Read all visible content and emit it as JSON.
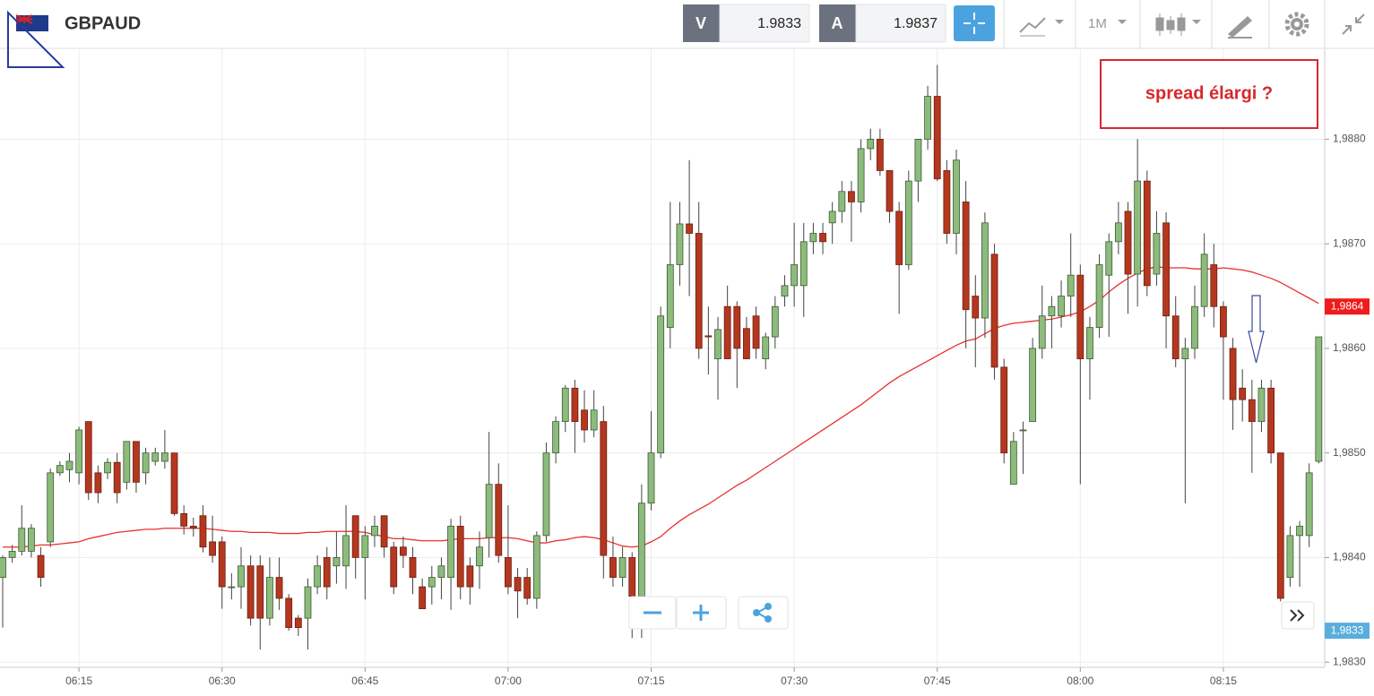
{
  "header": {
    "symbol": "GBPAUD",
    "bid_label": "V",
    "bid": "1.9833",
    "ask_label": "A",
    "ask": "1.9837",
    "timeframe": "1M"
  },
  "chart_data": {
    "type": "candlestick",
    "categories": [
      null,
      null,
      null,
      null,
      null,
      null,
      null,
      null,
      "06:15",
      null,
      null,
      null,
      null,
      null,
      null,
      null,
      null,
      null,
      null,
      null,
      null,
      null,
      null,
      "06:30",
      null,
      null,
      null,
      null,
      null,
      null,
      null,
      null,
      null,
      null,
      null,
      null,
      null,
      null,
      "06:45",
      null,
      null,
      null,
      null,
      null,
      null,
      null,
      null,
      null,
      null,
      null,
      null,
      null,
      null,
      "07:00",
      null,
      null,
      null,
      null,
      null,
      null,
      null,
      null,
      null,
      null,
      null,
      null,
      null,
      null,
      "07:15",
      null,
      null,
      null,
      null,
      null,
      null,
      null,
      null,
      null,
      null,
      null,
      null,
      null,
      null,
      "07:30",
      null,
      null,
      null,
      null,
      null,
      null,
      null,
      null,
      null,
      null,
      null,
      null,
      null,
      null,
      "07:45",
      null,
      null,
      null,
      null,
      null,
      null,
      null,
      null,
      null,
      null,
      null,
      null,
      null,
      null,
      "08:00",
      null,
      null,
      null,
      null,
      null,
      null,
      null,
      null,
      null,
      null,
      null,
      null,
      null,
      null,
      "08:15",
      null,
      null,
      null,
      null,
      null,
      null,
      null,
      null,
      null,
      null
    ],
    "open": [
      1.98381,
      1.984,
      1.98406,
      1.98406,
      1.98402,
      1.98415,
      1.98481,
      1.98484,
      1.98481,
      1.9853,
      1.98481,
      1.98481,
      1.98491,
      1.98472,
      1.98511,
      1.98481,
      1.98492,
      1.98492,
      1.985,
      1.98442,
      1.9843,
      1.9844,
      1.98415,
      1.98415,
      1.98372,
      1.98372,
      1.98392,
      1.98392,
      1.98342,
      1.98381,
      1.98361,
      1.98342,
      1.98342,
      1.98372,
      1.984,
      1.98392,
      1.98392,
      1.9844,
      1.984,
      1.98421,
      1.9844,
      1.9841,
      1.9841,
      1.984,
      1.98372,
      1.98372,
      1.98381,
      1.98381,
      1.9843,
      1.98392,
      1.98392,
      1.98419,
      1.9847,
      1.984,
      1.98381,
      1.98381,
      1.98361,
      1.98421,
      1.985,
      1.9853,
      1.98562,
      1.98541,
      1.98522,
      1.9853,
      1.984,
      1.98381,
      1.984,
      1.98363,
      1.98452,
      1.985,
      1.9862,
      1.9868,
      1.98719,
      1.9871,
      1.98612,
      1.9859,
      1.9864,
      1.9864,
      1.98619,
      1.98631,
      1.9859,
      1.98611,
      1.9865,
      1.9866,
      1.9866,
      1.98702,
      1.9871,
      1.9872,
      1.98731,
      1.9875,
      1.9874,
      1.98791,
      1.988,
      1.9877,
      1.98731,
      1.9868,
      1.9876,
      1.988,
      1.98841,
      1.9877,
      1.9871,
      1.9874,
      1.9865,
      1.98629,
      1.9869,
      1.98582,
      1.9847,
      1.98522,
      1.9853,
      1.986,
      1.98631,
      1.98631,
      1.9865,
      1.9867,
      1.9859,
      1.9862,
      1.9867,
      1.98702,
      1.98731,
      1.98671,
      1.9876,
      1.98671,
      1.9872,
      1.98631,
      1.9859,
      1.986,
      1.9864,
      1.9868,
      1.9864,
      1.986,
      1.98562,
      1.98551,
      1.9853,
      1.98562,
      1.985,
      1.98381,
      1.98421,
      1.98421,
      1.98492
    ],
    "high": [
      1.98402,
      1.98412,
      1.9845,
      1.98432,
      1.9841,
      1.98485,
      1.98492,
      1.985,
      1.98525,
      1.9853,
      1.98488,
      1.98495,
      1.985,
      1.98511,
      1.98511,
      1.98505,
      1.98505,
      1.98522,
      1.985,
      1.9845,
      1.98438,
      1.9845,
      1.9844,
      1.9842,
      1.98385,
      1.9841,
      1.98402,
      1.98402,
      1.984,
      1.984,
      1.98365,
      1.98345,
      1.9838,
      1.98402,
      1.9841,
      1.98425,
      1.9845,
      1.9844,
      1.9843,
      1.9844,
      1.9844,
      1.98415,
      1.9842,
      1.9841,
      1.9838,
      1.98392,
      1.984,
      1.98437,
      1.9844,
      1.984,
      1.98425,
      1.9852,
      1.9849,
      1.9845,
      1.9839,
      1.9839,
      1.98425,
      1.9851,
      1.98535,
      1.98565,
      1.9857,
      1.9856,
      1.9856,
      1.98545,
      1.9842,
      1.9841,
      1.98405,
      1.9847,
      1.9854,
      1.9864,
      1.9874,
      1.9874,
      1.9878,
      1.9874,
      1.9864,
      1.9863,
      1.9866,
      1.98645,
      1.9863,
      1.9864,
      1.98615,
      1.9865,
      1.9867,
      1.9872,
      1.9872,
      1.9872,
      1.9872,
      1.9874,
      1.9876,
      1.9876,
      1.988,
      1.9881,
      1.9881,
      1.9877,
      1.9874,
      1.9877,
      1.988,
      1.98851,
      1.98871,
      1.9878,
      1.9879,
      1.9876,
      1.9867,
      1.9873,
      1.987,
      1.9859,
      1.9852,
      1.9853,
      1.9861,
      1.9866,
      1.9865,
      1.98665,
      1.9871,
      1.9868,
      1.9863,
      1.9869,
      1.9871,
      1.9874,
      1.9874,
      1.988,
      1.9877,
      1.98731,
      1.9873,
      1.9865,
      1.9861,
      1.9866,
      1.9871,
      1.987,
      1.98645,
      1.9861,
      1.9858,
      1.9857,
      1.9857,
      1.9857,
      1.985,
      1.9843,
      1.98435,
      1.9849,
      1.98611
    ],
    "low": [
      1.98333,
      1.98395,
      1.98402,
      1.984,
      1.98372,
      1.9841,
      1.98478,
      1.98472,
      1.9847,
      1.98455,
      1.98452,
      1.98475,
      1.98452,
      1.98465,
      1.98462,
      1.9847,
      1.98488,
      1.98485,
      1.9844,
      1.98422,
      1.9842,
      1.98405,
      1.98395,
      1.98351,
      1.9836,
      1.98351,
      1.98335,
      1.98312,
      1.98335,
      1.9835,
      1.9833,
      1.98325,
      1.98312,
      1.98365,
      1.9836,
      1.98375,
      1.9837,
      1.9838,
      1.9836,
      1.9841,
      1.984,
      1.98365,
      1.9839,
      1.98365,
      1.98351,
      1.98355,
      1.9836,
      1.9835,
      1.9836,
      1.98355,
      1.9837,
      1.984,
      1.98395,
      1.98365,
      1.98342,
      1.98355,
      1.98351,
      1.98415,
      1.9849,
      1.9852,
      1.985,
      1.9851,
      1.98515,
      1.9838,
      1.98372,
      1.98372,
      1.98323,
      1.98323,
      1.98445,
      1.98495,
      1.986,
      1.9866,
      1.9865,
      1.9859,
      1.98575,
      1.98551,
      1.9859,
      1.98562,
      1.9859,
      1.9859,
      1.9858,
      1.986,
      1.9864,
      1.9864,
      1.9863,
      1.9869,
      1.9869,
      1.987,
      1.9872,
      1.98702,
      1.9873,
      1.9878,
      1.98765,
      1.9872,
      1.98633,
      1.98675,
      1.9874,
      1.9879,
      1.9876,
      1.987,
      1.9869,
      1.986,
      1.98582,
      1.9861,
      1.9857,
      1.9849,
      1.9847,
      1.9848,
      1.9853,
      1.9859,
      1.986,
      1.9862,
      1.9863,
      1.9847,
      1.98551,
      1.9861,
      1.98611,
      1.9869,
      1.98633,
      1.9864,
      1.9865,
      1.9866,
      1.986,
      1.98582,
      1.98452,
      1.9859,
      1.9863,
      1.9862,
      1.98551,
      1.98522,
      1.9853,
      1.98481,
      1.9852,
      1.9849,
      1.98358,
      1.98372,
      1.98372,
      1.9841,
      1.9849
    ],
    "close": [
      1.984,
      1.98406,
      1.98428,
      1.98428,
      1.98381,
      1.98481,
      1.98488,
      1.98492,
      1.98522,
      1.98462,
      1.98462,
      1.98491,
      1.98462,
      1.98511,
      1.98472,
      1.985,
      1.985,
      1.985,
      1.98442,
      1.9843,
      1.98428,
      1.9841,
      1.98402,
      1.98372,
      1.98372,
      1.98392,
      1.98342,
      1.98342,
      1.98381,
      1.98361,
      1.98333,
      1.98333,
      1.98372,
      1.98392,
      1.98372,
      1.984,
      1.98421,
      1.984,
      1.98421,
      1.9843,
      1.9841,
      1.98372,
      1.98402,
      1.98381,
      1.98351,
      1.98381,
      1.98392,
      1.9843,
      1.98372,
      1.98372,
      1.9841,
      1.9847,
      1.98402,
      1.98372,
      1.98368,
      1.98361,
      1.98421,
      1.985,
      1.9853,
      1.98562,
      1.9853,
      1.98522,
      1.98541,
      1.98402,
      1.98381,
      1.984,
      1.98363,
      1.98452,
      1.985,
      1.98631,
      1.9868,
      1.98719,
      1.9871,
      1.986,
      1.98611,
      1.98618,
      1.9859,
      1.986,
      1.9859,
      1.986,
      1.98611,
      1.9864,
      1.9866,
      1.9868,
      1.98702,
      1.9871,
      1.98702,
      1.98731,
      1.9875,
      1.9874,
      1.98791,
      1.988,
      1.9877,
      1.98731,
      1.9868,
      1.9876,
      1.988,
      1.98841,
      1.98762,
      1.9871,
      1.9878,
      1.98637,
      1.98629,
      1.9872,
      1.98582,
      1.985,
      1.98511,
      1.98522,
      1.986,
      1.98631,
      1.9864,
      1.9865,
      1.9867,
      1.9859,
      1.9862,
      1.9868,
      1.98702,
      1.9872,
      1.98671,
      1.9876,
      1.9866,
      1.9871,
      1.98631,
      1.9859,
      1.986,
      1.9864,
      1.9869,
      1.9864,
      1.98611,
      1.98551,
      1.98551,
      1.9853,
      1.98562,
      1.985,
      1.98361,
      1.98421,
      1.9843,
      1.98481,
      1.98611
    ],
    "up_color": "#8dbb7c",
    "down_color": "#b4371f",
    "moving_average": {
      "color": "#e8312f",
      "values": [
        1.9841,
        1.9841,
        1.9841,
        1.98411,
        1.98412,
        1.98412,
        1.98413,
        1.98414,
        1.98415,
        1.98418,
        1.9842,
        1.98422,
        1.98424,
        1.98425,
        1.98426,
        1.98427,
        1.98427,
        1.98428,
        1.98428,
        1.98428,
        1.98428,
        1.98428,
        1.98427,
        1.98426,
        1.98425,
        1.98425,
        1.98424,
        1.98424,
        1.98424,
        1.98423,
        1.98423,
        1.98423,
        1.98424,
        1.98424,
        1.98425,
        1.98425,
        1.98425,
        1.98425,
        1.98424,
        1.98422,
        1.9842,
        1.98418,
        1.98418,
        1.98417,
        1.98416,
        1.98416,
        1.98416,
        1.98417,
        1.98418,
        1.98418,
        1.98418,
        1.98419,
        1.98419,
        1.98419,
        1.98418,
        1.98416,
        1.98414,
        1.98414,
        1.98416,
        1.98417,
        1.98419,
        1.9842,
        1.98419,
        1.98417,
        1.98414,
        1.98411,
        1.9841,
        1.98411,
        1.98415,
        1.9842,
        1.98428,
        1.98435,
        1.98441,
        1.98446,
        1.98451,
        1.98457,
        1.98463,
        1.98469,
        1.98474,
        1.9848,
        1.98486,
        1.98492,
        1.98498,
        1.98504,
        1.9851,
        1.98516,
        1.98522,
        1.98528,
        1.98534,
        1.9854,
        1.98546,
        1.98553,
        1.9856,
        1.98567,
        1.98573,
        1.98578,
        1.98583,
        1.98588,
        1.98593,
        1.98598,
        1.98603,
        1.98607,
        1.98609,
        1.98614,
        1.98619,
        1.98622,
        1.98624,
        1.98625,
        1.98626,
        1.98627,
        1.98628,
        1.9863,
        1.98632,
        1.98635,
        1.9864,
        1.98646,
        1.98654,
        1.98661,
        1.98667,
        1.98672,
        1.98676,
        1.98678,
        1.98677,
        1.98677,
        1.98677,
        1.98676,
        1.98676,
        1.98676,
        1.98677,
        1.98676,
        1.98675,
        1.98673,
        1.9867,
        1.98667,
        1.98663,
        1.98658,
        1.98653,
        1.98648,
        1.98643
      ]
    },
    "ylim": [
      1.98295,
      1.98886
    ],
    "yticks": [
      {
        "value": 1.983,
        "label": "1,9830"
      },
      {
        "value": 1.984,
        "label": "1,9840"
      },
      {
        "value": 1.985,
        "label": "1,9850"
      },
      {
        "value": 1.986,
        "label": "1,9860"
      },
      {
        "value": 1.987,
        "label": "1,9870"
      },
      {
        "value": 1.988,
        "label": "1,9880"
      }
    ],
    "grid": true,
    "price_markers": [
      {
        "value": 1.9864,
        "label": "1,9864",
        "color": "#ee1c1c"
      },
      {
        "value": 1.9833,
        "label": "1,9833",
        "color": "#5aaedc"
      }
    ],
    "annotation": "spread élargi ?"
  }
}
